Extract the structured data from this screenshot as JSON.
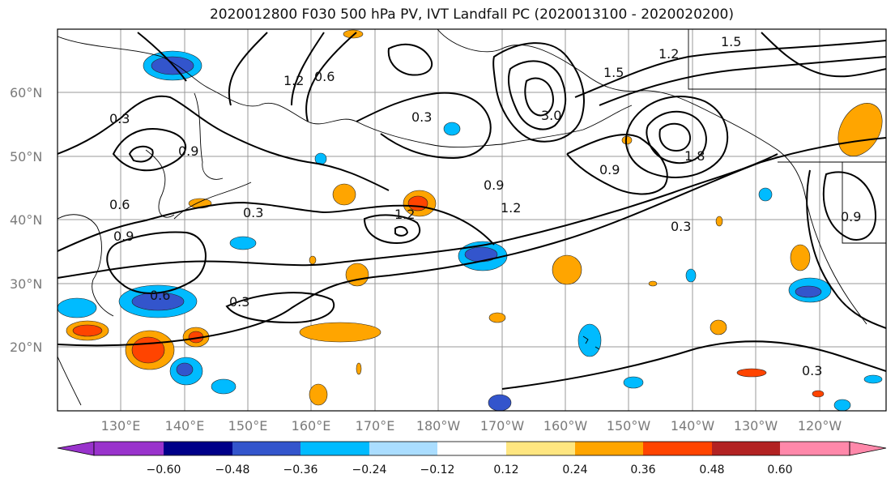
{
  "title": "2020012800 F030 500 hPa PV, IVT Landfall PC (2020013100 - 2020020200)",
  "map": {
    "lon_labels": [
      "130°E",
      "140°E",
      "150°E",
      "160°E",
      "170°E",
      "180°W",
      "170°W",
      "160°W",
      "150°W",
      "140°W",
      "130°W",
      "120°W"
    ],
    "lat_labels": [
      "60°N",
      "50°N",
      "40°N",
      "30°N",
      "20°N"
    ],
    "contour_labels": [
      "0.3",
      "0.6",
      "0.9",
      "1.2",
      "1.5",
      "1.8",
      "3.0",
      "0.3",
      "0.6",
      "0.9",
      "1.2",
      "1.5",
      "0.3",
      "0.3",
      "0.6",
      "0.9",
      "0.9",
      "0.9",
      "1.2",
      "1.2",
      "0.3",
      "0.3"
    ]
  },
  "colorbar": {
    "ticks": [
      "−0.60",
      "−0.48",
      "−0.36",
      "−0.24",
      "−0.12",
      "0.12",
      "0.24",
      "0.36",
      "0.48",
      "0.60"
    ],
    "colors": [
      "#9933cc",
      "#000088",
      "#3355cc",
      "#00bbff",
      "#aaddff",
      "#ffffff",
      "#ffe680",
      "#ffa500",
      "#ff4400",
      "#b22222",
      "#ff88aa"
    ]
  }
}
